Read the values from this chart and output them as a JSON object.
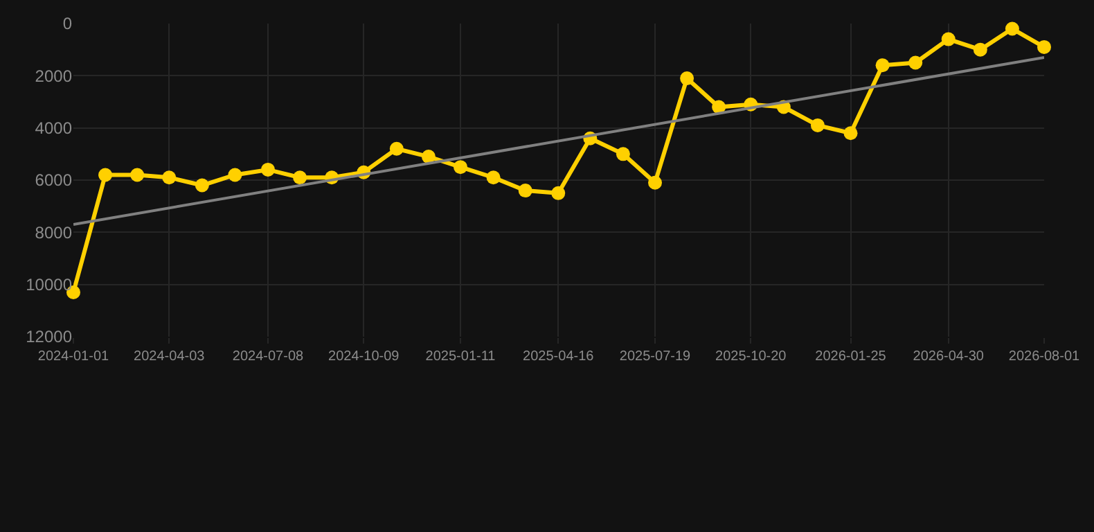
{
  "chart_data": {
    "type": "line",
    "x": [
      "2024-01-01",
      "2024-02-01",
      "2024-03-03",
      "2024-04-03",
      "2024-05-05",
      "2024-06-06",
      "2024-07-08",
      "2024-08-08",
      "2024-09-08",
      "2024-10-09",
      "2024-11-10",
      "2024-12-11",
      "2025-01-11",
      "2025-02-12",
      "2025-03-15",
      "2025-04-16",
      "2025-05-17",
      "2025-06-18",
      "2025-07-19",
      "2025-08-19",
      "2025-09-19",
      "2025-10-20",
      "2025-11-21",
      "2025-12-24",
      "2026-01-25",
      "2026-02-25",
      "2026-03-29",
      "2026-04-30",
      "2026-05-31",
      "2026-07-01",
      "2026-08-01"
    ],
    "series": [
      {
        "color": "#ffd000",
        "marker": "circle",
        "values": [
          10300,
          5800,
          5800,
          5900,
          6200,
          5800,
          5600,
          5900,
          5900,
          5700,
          4800,
          5100,
          5500,
          5900,
          6400,
          6500,
          4400,
          5000,
          6100,
          2100,
          3200,
          3100,
          3200,
          3900,
          4200,
          1600,
          1500,
          600,
          1000,
          200,
          900
        ]
      },
      {
        "type": "line",
        "color": "#808080",
        "marker": "none",
        "x": [
          "2024-01-01",
          "2026-08-01"
        ],
        "values": [
          7700,
          1300
        ]
      }
    ],
    "xlim": [
      "2024-01-01",
      "2026-08-01"
    ],
    "xticks": [
      "2024-01-01",
      "2024-04-03",
      "2024-07-08",
      "2024-10-09",
      "2025-01-11",
      "2025-04-16",
      "2025-07-19",
      "2025-10-20",
      "2026-01-25",
      "2026-04-30",
      "2026-08-01"
    ],
    "ylim": [
      12000,
      0
    ],
    "yticks": [
      0,
      2000,
      4000,
      6000,
      8000,
      10000,
      12000
    ],
    "grid": true
  }
}
